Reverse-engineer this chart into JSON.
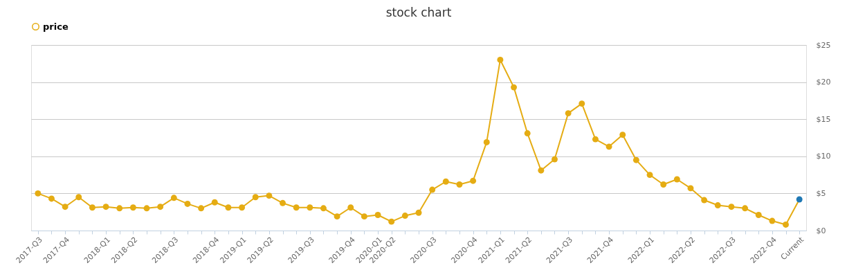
{
  "chart_data": {
    "type": "line",
    "title": "stock chart",
    "categories": [
      "2017-Q3",
      null,
      "2017-Q4",
      null,
      null,
      "2018-Q1",
      null,
      "2018-Q2",
      null,
      null,
      "2018-Q3",
      null,
      null,
      "2018-Q4",
      null,
      "2019-Q1",
      null,
      "2019-Q2",
      null,
      null,
      "2019-Q3",
      null,
      null,
      "2019-Q4",
      null,
      "2020-Q1",
      "2020-Q2",
      null,
      null,
      "2020-Q3",
      null,
      null,
      "2020-Q4",
      null,
      "2021-Q1",
      null,
      "2021-Q2",
      null,
      null,
      "2021-Q3",
      null,
      null,
      "2021-Q4",
      null,
      null,
      "2022-Q1",
      null,
      null,
      "2022-Q2",
      null,
      null,
      "2022-Q3",
      null,
      null,
      "2022-Q4",
      null,
      "Current"
    ],
    "series": [
      {
        "name": "price",
        "color": "#e5ac13",
        "values": [
          5.0,
          4.3,
          3.2,
          4.5,
          3.1,
          3.2,
          3.0,
          3.1,
          3.0,
          3.2,
          4.4,
          3.6,
          3.0,
          3.8,
          3.1,
          3.1,
          4.5,
          4.7,
          3.7,
          3.1,
          3.1,
          3.0,
          1.9,
          3.1,
          1.9,
          2.1,
          1.2,
          2.0,
          2.4,
          5.5,
          6.6,
          6.2,
          6.7,
          11.9,
          23.0,
          19.3,
          13.1,
          8.1,
          9.6,
          15.8,
          17.1,
          12.3,
          11.3,
          12.9,
          9.5,
          7.5,
          6.2,
          6.9,
          5.7,
          4.1,
          3.4,
          3.2,
          3.0,
          2.1,
          1.3,
          0.8,
          4.2
        ],
        "colors": [
          "#e5ac13",
          "#e5ac13",
          "#e5ac13",
          "#e5ac13",
          "#e5ac13",
          "#e5ac13",
          "#e5ac13",
          "#e5ac13",
          "#e5ac13",
          "#e5ac13",
          "#e5ac13",
          "#e5ac13",
          "#e5ac13",
          "#e5ac13",
          "#e5ac13",
          "#e5ac13",
          "#e5ac13",
          "#e5ac13",
          "#e5ac13",
          "#e5ac13",
          "#e5ac13",
          "#e5ac13",
          "#e5ac13",
          "#e5ac13",
          "#e5ac13",
          "#e5ac13",
          "#e5ac13",
          "#e5ac13",
          "#e5ac13",
          "#e5ac13",
          "#e5ac13",
          "#e5ac13",
          "#e5ac13",
          "#e5ac13",
          "#e5ac13",
          "#e5ac13",
          "#e5ac13",
          "#e5ac13",
          "#e5ac13",
          "#e5ac13",
          "#e5ac13",
          "#e5ac13",
          "#e5ac13",
          "#e5ac13",
          "#e5ac13",
          "#e5ac13",
          "#e5ac13",
          "#e5ac13",
          "#e5ac13",
          "#e5ac13",
          "#e5ac13",
          "#e5ac13",
          "#e5ac13",
          "#e5ac13",
          "#e5ac13",
          "#e5ac13",
          "#1f78b4"
        ]
      }
    ],
    "ylim": [
      0,
      25
    ],
    "yticks": [
      {
        "value": 0,
        "label": "$0"
      },
      {
        "value": 5,
        "label": "$5"
      },
      {
        "value": 10,
        "label": "$10"
      },
      {
        "value": 15,
        "label": "$15"
      },
      {
        "value": 20,
        "label": "$20"
      },
      {
        "value": 25,
        "label": "$25"
      }
    ],
    "grid": "y",
    "legend": "top",
    "marker": "circle",
    "line_style": "solid"
  }
}
